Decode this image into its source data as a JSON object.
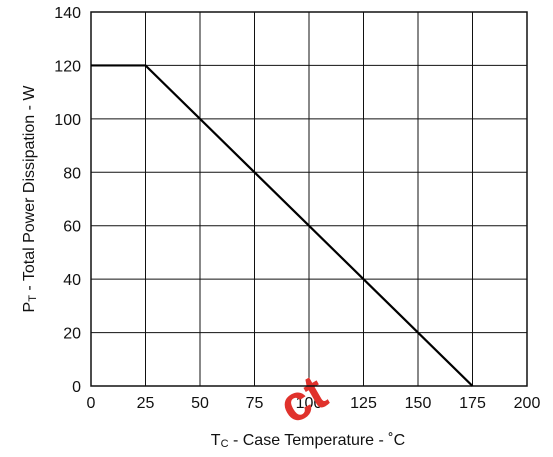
{
  "chart_data": {
    "type": "line",
    "xlabel": {
      "main": "T",
      "sub": "C",
      "rest": " - Case Temperature  - ˚C"
    },
    "ylabel": {
      "main": "P",
      "sub": "T",
      "rest": " - Total Power Dissipation  -  W"
    },
    "xlim": [
      0,
      200
    ],
    "ylim": [
      0,
      140
    ],
    "x_ticks": [
      0,
      25,
      50,
      75,
      100,
      125,
      150,
      175,
      200
    ],
    "y_ticks": [
      0,
      20,
      40,
      60,
      80,
      100,
      120,
      140
    ],
    "grid": true,
    "series": [
      {
        "x": [
          0,
          25,
          175
        ],
        "y": [
          120,
          120,
          0
        ],
        "color": "#000000"
      }
    ]
  },
  "watermark": {
    "text": "ct",
    "color": "#e0322c"
  }
}
